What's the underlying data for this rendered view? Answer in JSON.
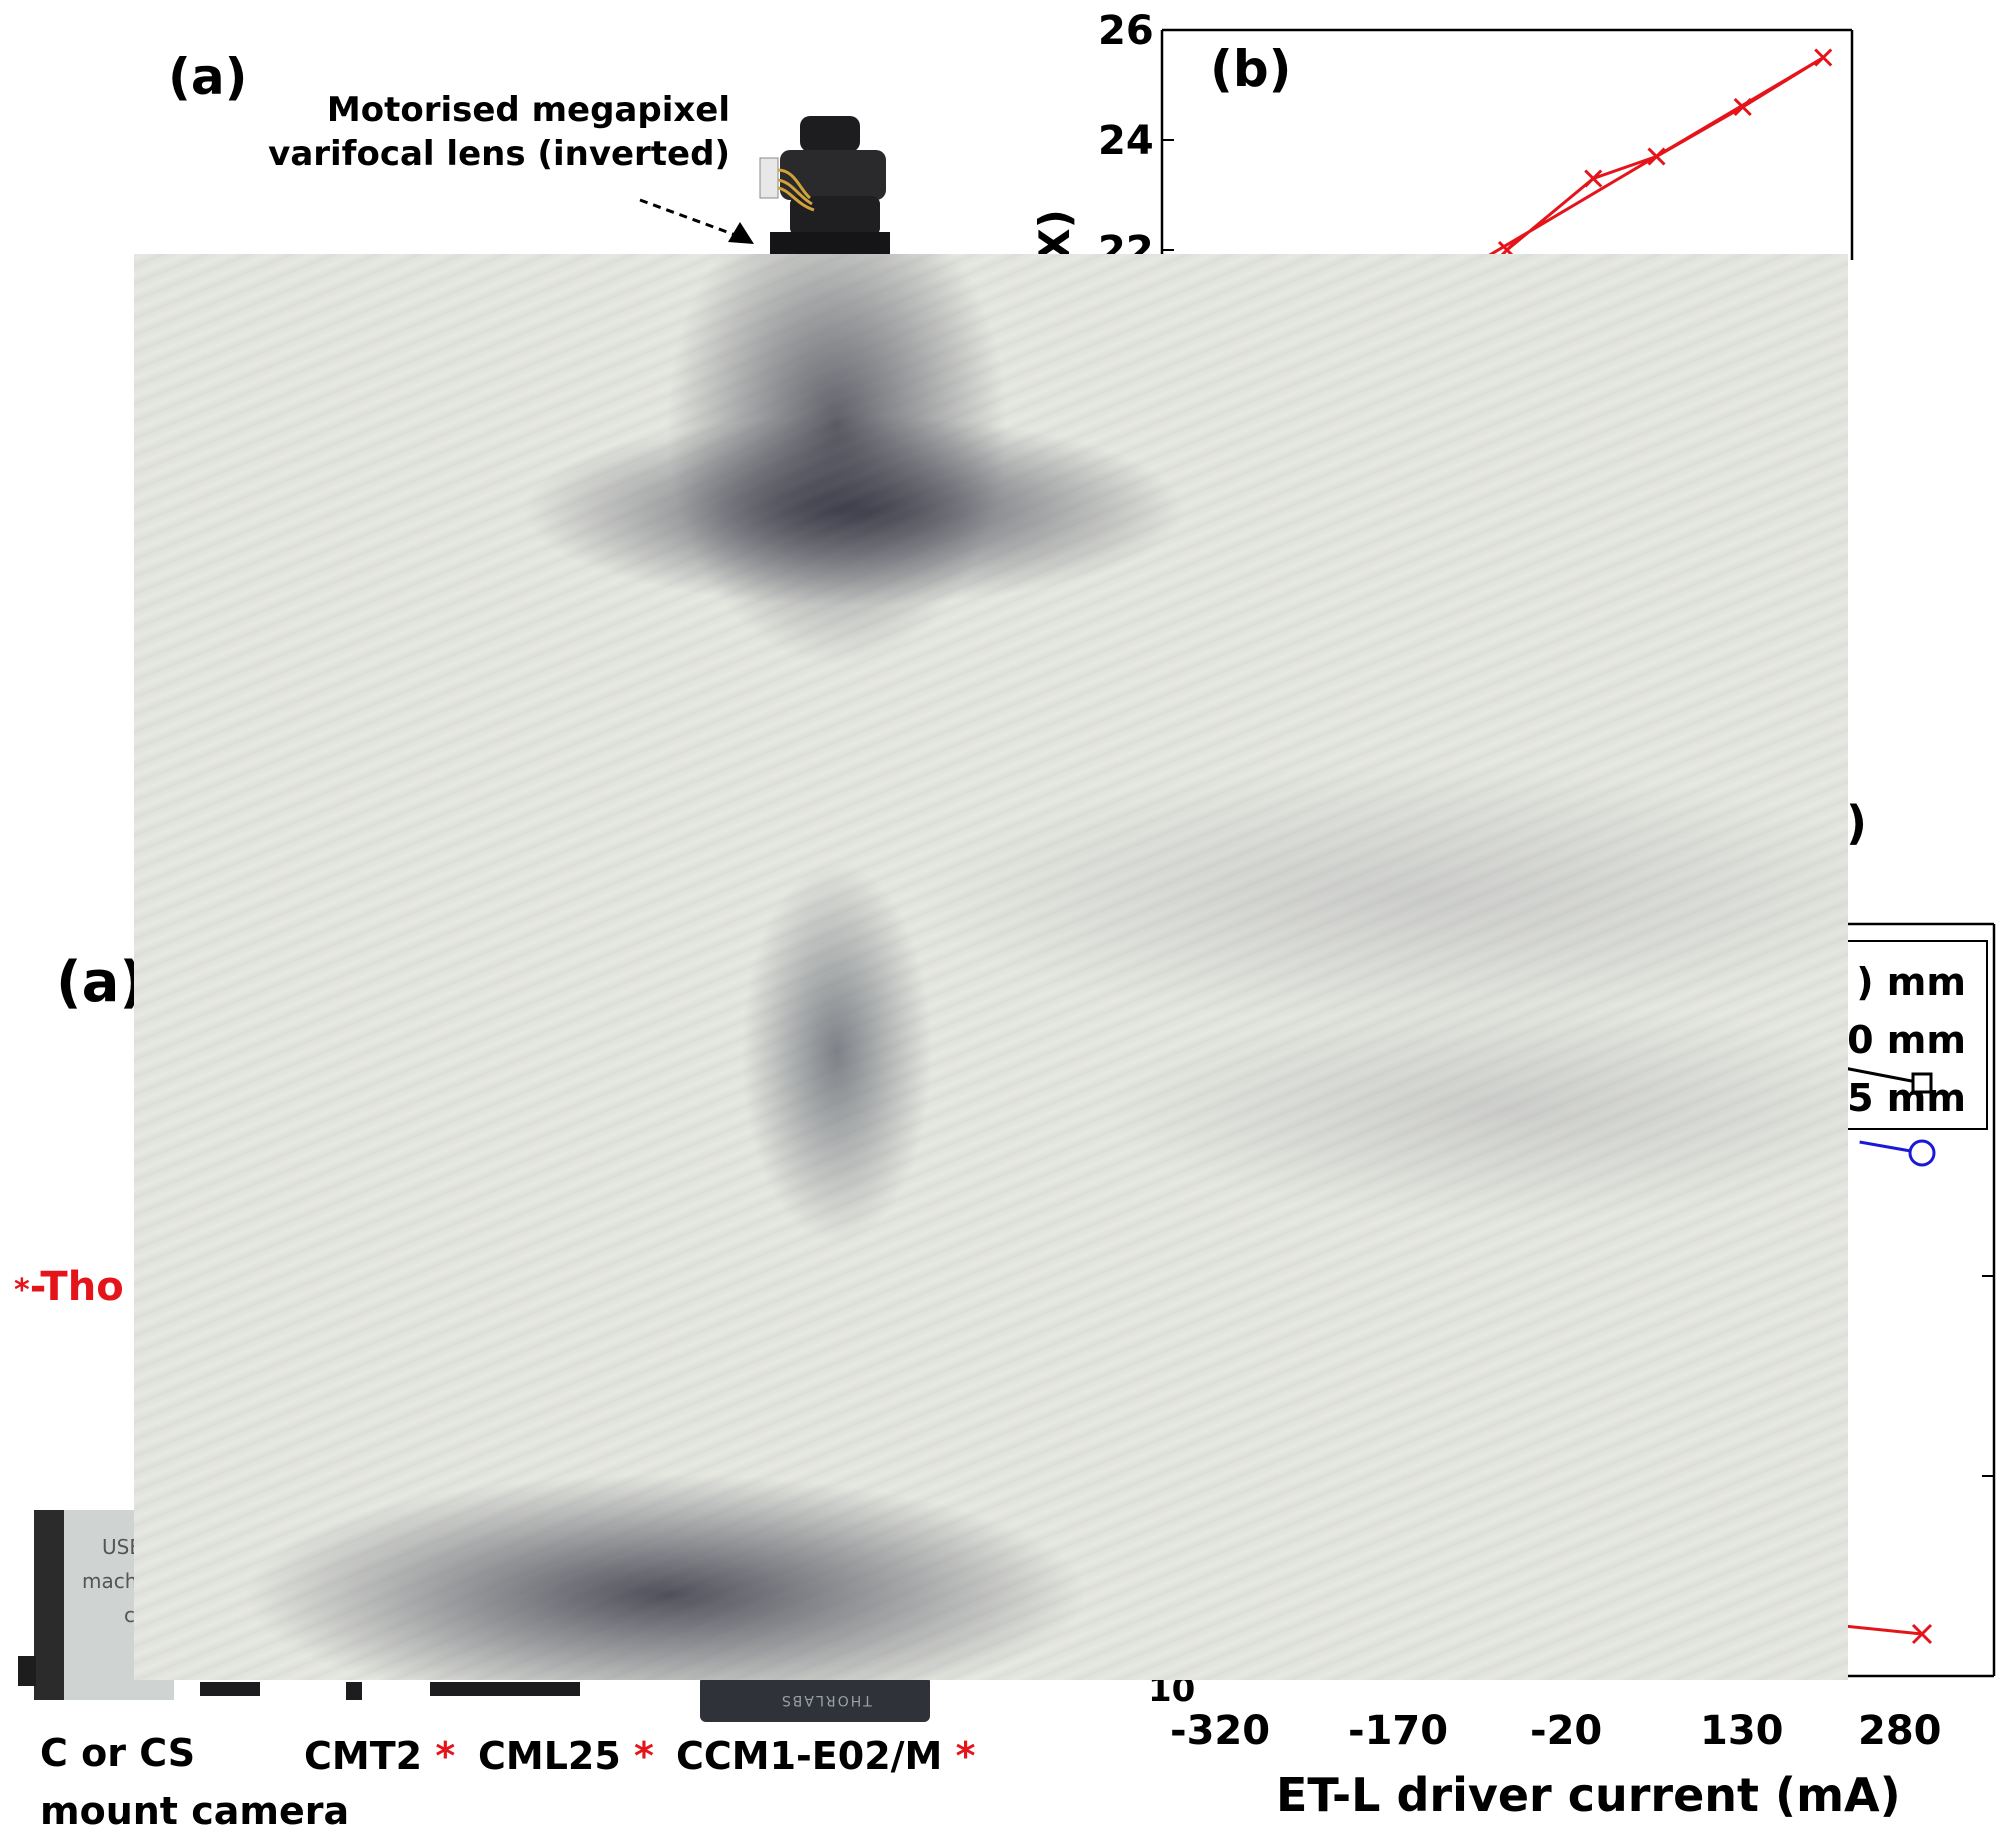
{
  "panel_a": {
    "label_top": "(a)",
    "label_mid": "(a)",
    "callout_line1": "Motorised megapixel",
    "callout_line2": "varifocal lens (inverted)",
    "camera_text_line1": "USB",
    "camera_text_line2": "machin",
    "camera_text_line3": "cam",
    "camera_label_line1": "C or CS",
    "camera_label_line2": "mount camera",
    "thorlabs_note": "-Tho",
    "thorlabs_engraving": "THORLABS",
    "parts": [
      {
        "name": "CMT2",
        "star": "*"
      },
      {
        "name": "CML25",
        "star": "*"
      },
      {
        "name": "CCM1-E02/M",
        "star": "*"
      }
    ],
    "star_symbol": "*"
  },
  "panel_b": {
    "label": "(b)",
    "ylabel_fragment": "(X)",
    "line_color": "#e5141b",
    "chart_data": {
      "type": "line",
      "x": [
        -20,
        55,
        110,
        185,
        255
      ],
      "series": [
        {
          "values": [
            22.0,
            23.3,
            23.7,
            24.6,
            25.5
          ],
          "color": "#e5141b",
          "marker": "x"
        }
      ],
      "yticks": [
        "26",
        "24",
        "22"
      ],
      "ylim": [
        21.6,
        26
      ]
    }
  },
  "panel_c": {
    "title_fragment": ")",
    "legend_rows": [
      ")  mm",
      "0 mm",
      "5 mm"
    ],
    "chart_data": {
      "type": "line",
      "xlabel": "ET-L driver current (mA)",
      "xticks": [
        "-320",
        "-170",
        "-20",
        "130",
        "280"
      ],
      "ytick_bottom": "10",
      "series": [
        {
          "color": "#000000",
          "marker": "square",
          "points": [
            [
              180,
              1068
            ],
            [
              280,
              1083
            ]
          ]
        },
        {
          "color": "#1a1ad6",
          "marker": "circle",
          "points": [
            [
              200,
              1142
            ],
            [
              280,
              1153
            ]
          ]
        },
        {
          "color": "#e5141b",
          "marker": "x",
          "points": [
            [
              180,
              1626
            ],
            [
              280,
              1634
            ]
          ]
        }
      ]
    }
  }
}
